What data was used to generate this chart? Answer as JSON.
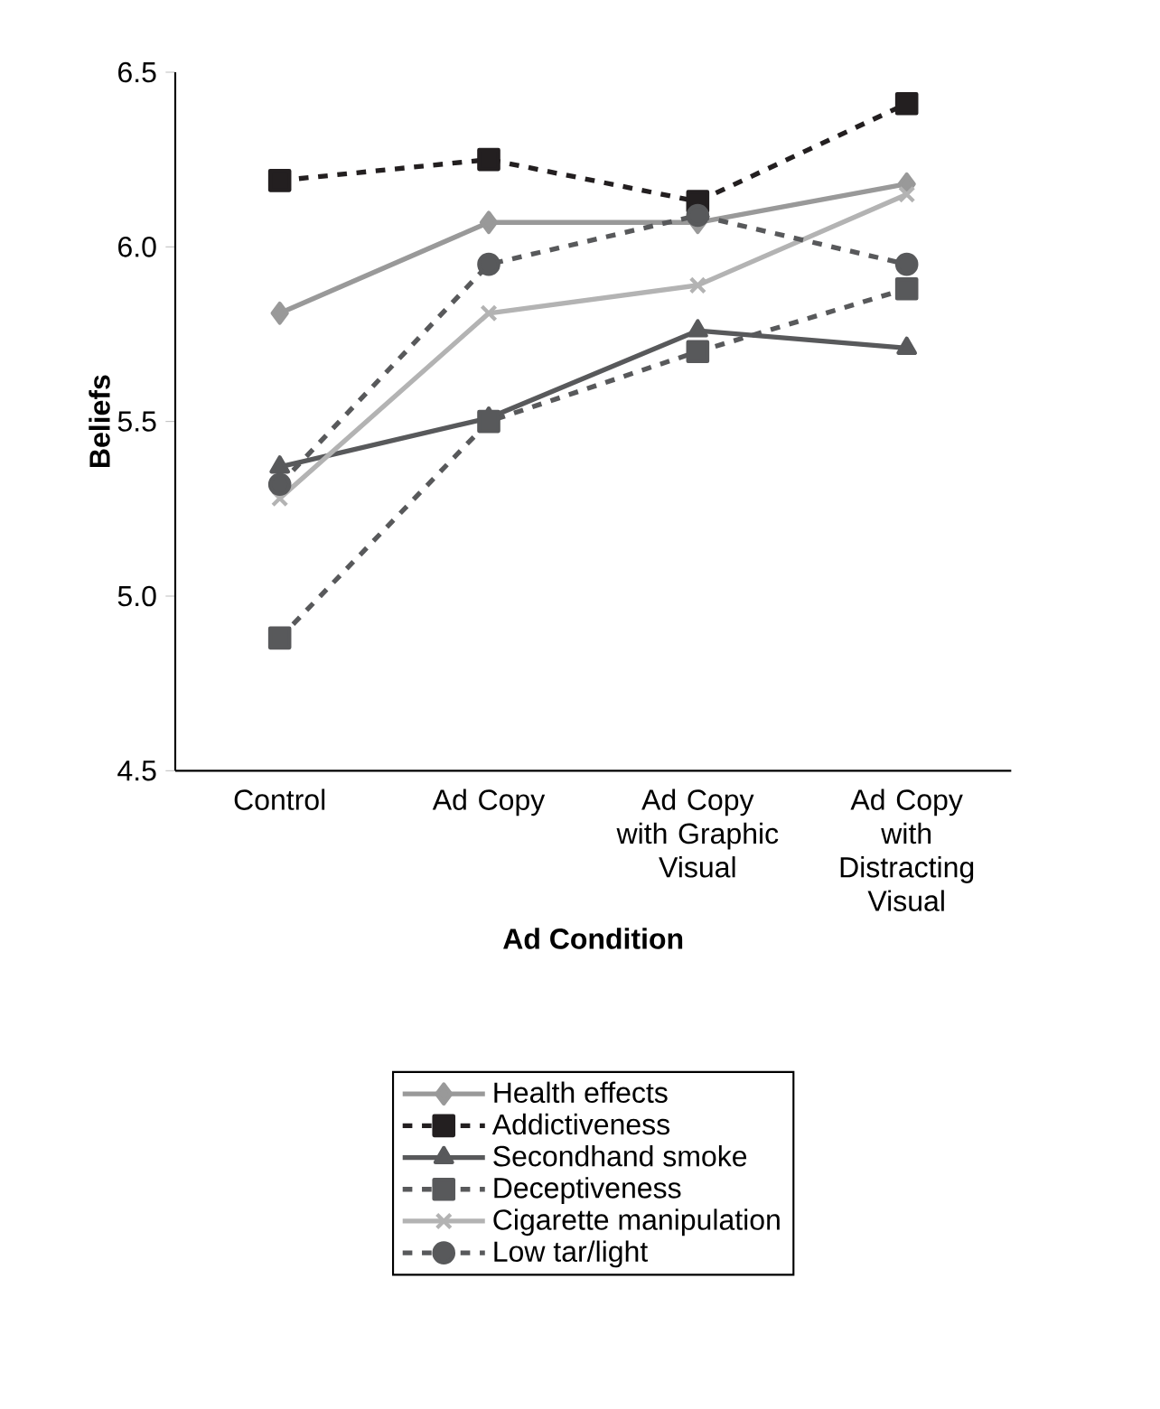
{
  "chart_data": {
    "type": "line",
    "xlabel": "Ad Condition",
    "ylabel": "Beliefs",
    "categories": [
      "Control",
      "Ad Copy",
      "Ad Copy with Graphic Visual",
      "Ad Copy with Distracting Visual"
    ],
    "ylim": [
      4.5,
      6.5
    ],
    "yticks": [
      {
        "value": 4.5,
        "label": "4.5"
      },
      {
        "value": 5.0,
        "label": "5.0"
      },
      {
        "value": 5.5,
        "label": "5.5"
      },
      {
        "value": 6.0,
        "label": "6.0"
      },
      {
        "value": 6.5,
        "label": "6.5"
      }
    ],
    "legend": "bottom",
    "grid": false,
    "series": [
      {
        "name": "Health effects",
        "color": "#999999",
        "marker": "diamond",
        "line_style": "solid",
        "values": [
          5.81,
          6.07,
          6.07,
          6.18
        ]
      },
      {
        "name": "Addictiveness",
        "color": "#231f20",
        "marker": "square",
        "line_style": "dashed",
        "values": [
          6.19,
          6.25,
          6.13,
          6.41
        ]
      },
      {
        "name": "Secondhand smoke",
        "color": "#58595b",
        "marker": "triangle",
        "line_style": "solid",
        "values": [
          5.37,
          5.51,
          5.76,
          5.71
        ]
      },
      {
        "name": "Deceptiveness",
        "color": "#58595b",
        "marker": "square",
        "line_style": "dashed",
        "values": [
          4.88,
          5.5,
          5.7,
          5.88
        ]
      },
      {
        "name": "Cigarette manipulation",
        "color": "#b3b3b3",
        "marker": "cross",
        "line_style": "solid",
        "values": [
          5.28,
          5.81,
          5.89,
          6.15
        ]
      },
      {
        "name": "Low tar/light",
        "color": "#58595b",
        "marker": "circle",
        "line_style": "dashed",
        "values": [
          5.32,
          5.95,
          6.09,
          5.95
        ]
      }
    ]
  }
}
